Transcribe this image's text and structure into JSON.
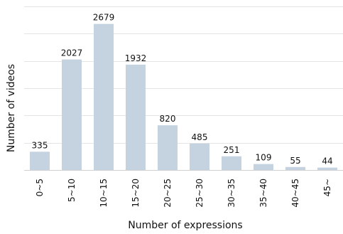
{
  "chart_data": {
    "type": "bar",
    "categories": [
      "0~5",
      "5~10",
      "10~15",
      "15~20",
      "20~25",
      "25~30",
      "30~35",
      "35~40",
      "40~45",
      "45~"
    ],
    "values": [
      335,
      2027,
      2679,
      1932,
      820,
      485,
      251,
      109,
      55,
      44
    ],
    "data_labels": [
      "335",
      "2027",
      "2679",
      "1932",
      "820",
      "485",
      "251",
      "109",
      "55",
      "44"
    ],
    "title": "",
    "xlabel": "Number of expressions",
    "ylabel": "Number of videos",
    "ylim": [
      0,
      3000
    ],
    "grid": true,
    "legend": "none",
    "colors": {
      "bar": "#c5d3e0",
      "grid": "#e4e4e4",
      "text": "#111111"
    }
  }
}
